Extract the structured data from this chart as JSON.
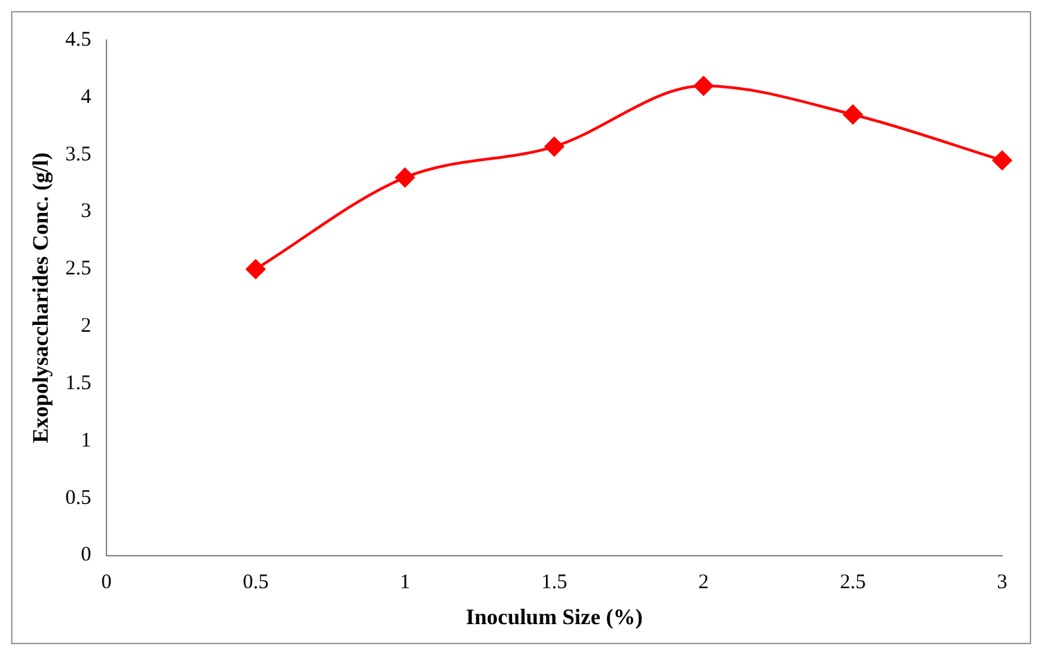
{
  "chart_data": {
    "type": "line",
    "xlabel": "Inoculum Size (%)",
    "ylabel": "Exopolysaccharides Conc. (g/l)",
    "x": [
      0.5,
      1,
      1.5,
      2,
      2.5,
      3
    ],
    "series": [
      {
        "color": "#ff0000",
        "values": [
          2.5,
          3.3,
          3.57,
          4.1,
          3.85,
          3.45
        ]
      }
    ],
    "xlim": [
      0,
      3
    ],
    "xticks": [
      0,
      0.5,
      1,
      1.5,
      2,
      2.5,
      3
    ],
    "ylim": [
      0,
      4.5
    ],
    "yticks": [
      0,
      0.5,
      1,
      1.5,
      2,
      2.5,
      3,
      3.5,
      4,
      4.5
    ],
    "grid": false,
    "legend": false,
    "marker": "diamond",
    "line_style": "solid"
  }
}
